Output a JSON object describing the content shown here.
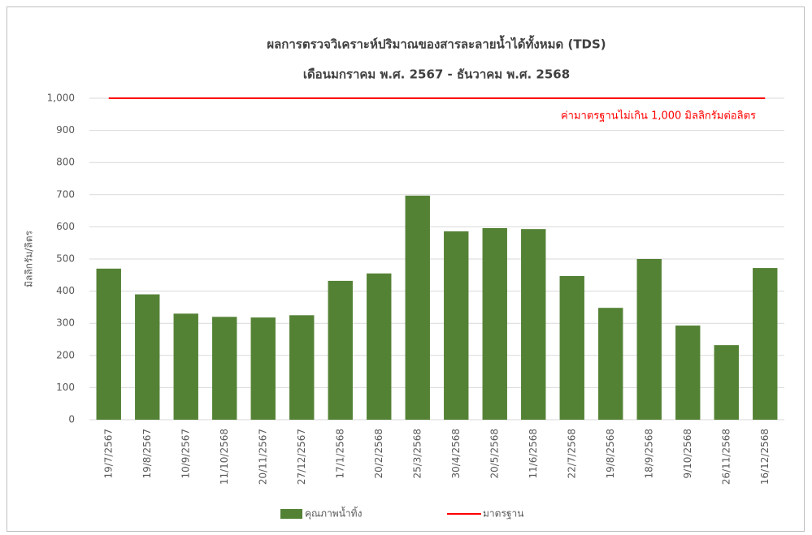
{
  "chart_data": {
    "type": "bar",
    "title": "ผลการตรวจวิเคราะห์ปริมาณของสารละลายน้ำได้ทั้งหมด (TDS)",
    "subtitle": "เดือนมกราคม พ.ศ. 2567 - ธันวาคม พ.ศ. 2568",
    "y_label": "มิลลิกรัม/ลิตร",
    "annotation": "ค่ามาตรฐานไม่เกิน 1,000 มิลลิกรัมต่อลิตร",
    "categories": [
      "19/7/2567",
      "19/8/2567",
      "10/9/2567",
      "11/10/2568",
      "20/11/2567",
      "27/12/2567",
      "17/1/2568",
      "20/2/2568",
      "25/3/2568",
      "30/4/2568",
      "20/5/2568",
      "11/6/2568",
      "22/7/2568",
      "19/8/2568",
      "18/9/2568",
      "9/10/2568",
      "26/11/2568",
      "16/12/2568"
    ],
    "series": [
      {
        "name": "คุณภาพน้ำทิ้ง",
        "type": "bar",
        "color": "#548235",
        "values": [
          470,
          390,
          330,
          320,
          318,
          325,
          432,
          455,
          697,
          586,
          596,
          593,
          447,
          348,
          500,
          293,
          232,
          472
        ]
      },
      {
        "name": "มาตรฐาน",
        "type": "line",
        "color": "#ff0000",
        "values": [
          1000,
          1000,
          1000,
          1000,
          1000,
          1000,
          1000,
          1000,
          1000,
          1000,
          1000,
          1000,
          1000,
          1000,
          1000,
          1000,
          1000,
          1000
        ]
      }
    ],
    "ylim": [
      0,
      1000
    ],
    "yticks": [
      0,
      100,
      200,
      300,
      400,
      500,
      600,
      700,
      800,
      900,
      {
        "value": 1000,
        "label": "1,000"
      }
    ],
    "grid": true,
    "legend": "bottom"
  }
}
